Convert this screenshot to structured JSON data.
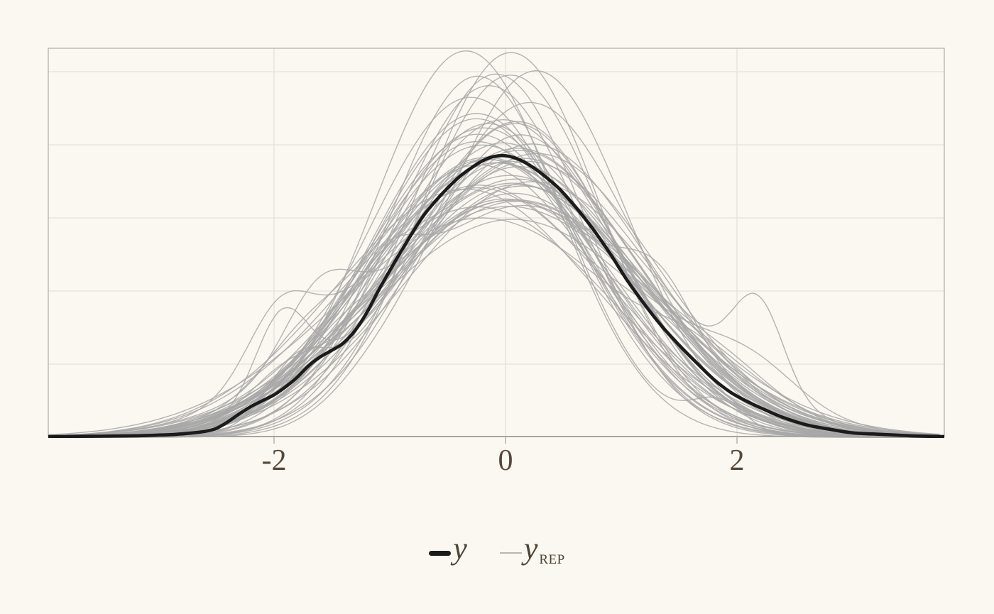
{
  "page": {
    "background_color": "#fbf8f1"
  },
  "chart_data": {
    "type": "line",
    "variant": "kernel-density-overlay-posterior-predictive-check",
    "title": "",
    "xlabel": "",
    "ylabel": "",
    "xlim": [
      -3.95,
      3.79
    ],
    "ylim": [
      0,
      0.532
    ],
    "grid_visible": true,
    "x_ticks": [
      {
        "value": -2,
        "label": "-2"
      },
      {
        "value": 0,
        "label": "0"
      },
      {
        "value": 2,
        "label": "2"
      }
    ],
    "y_gridlines": [
      0.1,
      0.2,
      0.3,
      0.4,
      0.5
    ],
    "x_gridlines": [
      -2,
      0,
      2
    ],
    "legend_position": "bottom-center",
    "series": [
      {
        "name": "y",
        "role": "observed-density",
        "color": "#1b1b1b",
        "stroke_width": 4.6,
        "points": [
          [
            -3.95,
            0.001
          ],
          [
            -3.5,
            0.0015
          ],
          [
            -3.2,
            0.002
          ],
          [
            -3.0,
            0.003
          ],
          [
            -2.85,
            0.004
          ],
          [
            -2.7,
            0.006
          ],
          [
            -2.6,
            0.008
          ],
          [
            -2.5,
            0.012
          ],
          [
            -2.4,
            0.021
          ],
          [
            -2.3,
            0.032
          ],
          [
            -2.2,
            0.042
          ],
          [
            -2.1,
            0.05
          ],
          [
            -2.0,
            0.058
          ],
          [
            -1.9,
            0.069
          ],
          [
            -1.8,
            0.082
          ],
          [
            -1.7,
            0.098
          ],
          [
            -1.6,
            0.11
          ],
          [
            -1.5,
            0.119
          ],
          [
            -1.4,
            0.129
          ],
          [
            -1.3,
            0.146
          ],
          [
            -1.2,
            0.17
          ],
          [
            -1.1,
            0.2
          ],
          [
            -1.0,
            0.228
          ],
          [
            -0.9,
            0.255
          ],
          [
            -0.8,
            0.281
          ],
          [
            -0.7,
            0.305
          ],
          [
            -0.6,
            0.324
          ],
          [
            -0.5,
            0.341
          ],
          [
            -0.4,
            0.356
          ],
          [
            -0.3,
            0.368
          ],
          [
            -0.2,
            0.378
          ],
          [
            -0.1,
            0.384
          ],
          [
            0.0,
            0.385
          ],
          [
            0.1,
            0.381
          ],
          [
            0.2,
            0.373
          ],
          [
            0.3,
            0.362
          ],
          [
            0.45,
            0.342
          ],
          [
            0.6,
            0.316
          ],
          [
            0.75,
            0.286
          ],
          [
            0.9,
            0.252
          ],
          [
            1.05,
            0.215
          ],
          [
            1.2,
            0.182
          ],
          [
            1.35,
            0.152
          ],
          [
            1.5,
            0.126
          ],
          [
            1.65,
            0.102
          ],
          [
            1.8,
            0.079
          ],
          [
            1.95,
            0.061
          ],
          [
            2.1,
            0.048
          ],
          [
            2.25,
            0.037
          ],
          [
            2.4,
            0.027
          ],
          [
            2.6,
            0.017
          ],
          [
            2.8,
            0.011
          ],
          [
            3.0,
            0.006
          ],
          [
            3.25,
            0.004
          ],
          [
            3.5,
            0.002
          ],
          [
            3.79,
            0.001
          ]
        ]
      },
      {
        "name": "y_rep",
        "role": "replicated-densities",
        "color": "#a7a7a7",
        "stroke_width": 1.4,
        "opacity": 0.85,
        "count": 55,
        "generator": {
          "seed": 7,
          "distribution": "gaussian-mixture",
          "mu_range": [
            -0.35,
            0.28
          ],
          "sigma_range": [
            0.76,
            1.26
          ],
          "amp_range": [
            0.95,
            1.05
          ],
          "bump_prob": 0.55,
          "bump_weight_range": [
            0.02,
            0.07
          ],
          "bump_offset_range": [
            1.15,
            2.1
          ],
          "bump_sigma_range": [
            0.22,
            0.45
          ],
          "peak_cap": 0.53,
          "sample_step": 0.1
        }
      }
    ],
    "colors": {
      "background": "#fbf8f1",
      "grid": "#e3e1db",
      "panel_border": "#aeaca6",
      "axis_line": "#8f8d87",
      "tick_mark": "#b4b2ac",
      "tick_label": "#55483b",
      "legend_text": "#4e4337"
    }
  },
  "legend": {
    "observed_label": "y",
    "rep_label": "y",
    "rep_subscript": "REP"
  }
}
